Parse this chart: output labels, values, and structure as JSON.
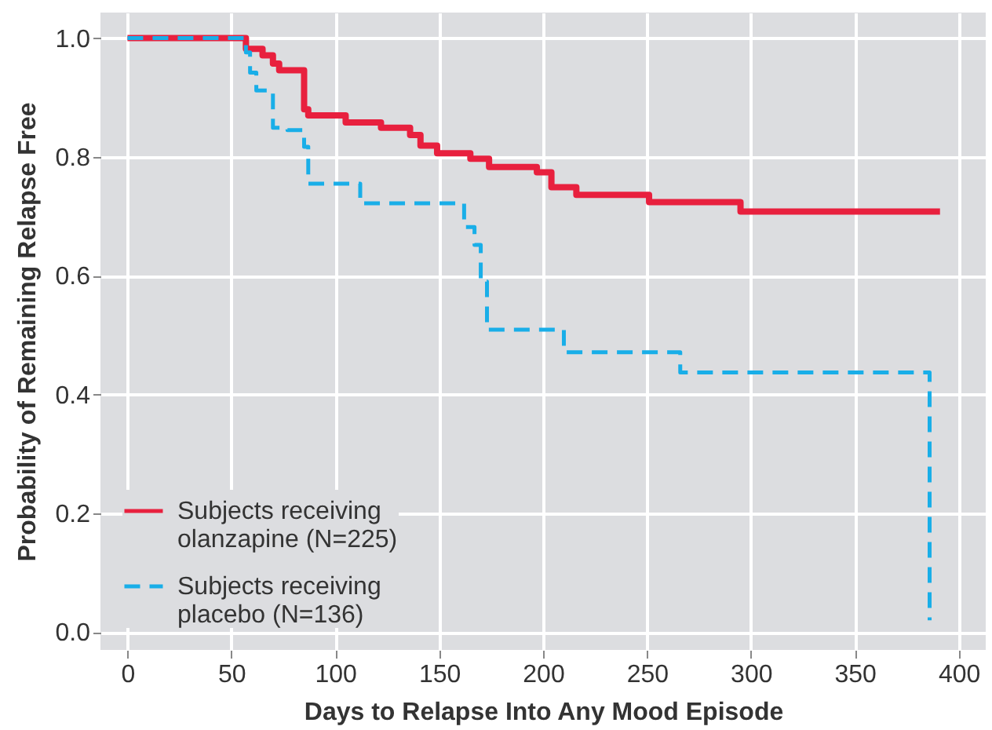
{
  "chart_data": {
    "type": "step",
    "xlabel": "Days to Relapse Into Any Mood Episode",
    "ylabel": "Probability of Remaining Relapse Free",
    "xlim": [
      -13,
      413
    ],
    "ylim": [
      -0.03,
      1.043
    ],
    "xticks": [
      0,
      50,
      100,
      150,
      200,
      250,
      300,
      350,
      400
    ],
    "yticks": [
      {
        "value": 0,
        "label": "0.0"
      },
      {
        "value": 0.2,
        "label": "0.2"
      },
      {
        "value": 0.4,
        "label": "0.4"
      },
      {
        "value": 0.6,
        "label": "0.6"
      },
      {
        "value": 0.8,
        "label": "0.8"
      },
      {
        "value": 1,
        "label": "1.0"
      }
    ],
    "grid": true,
    "legend": "bottom left",
    "marker": "none",
    "series": [
      {
        "name": "Subjects receiving\nolanzapine (N=225)",
        "color": "#e8203e",
        "line_style": "solid",
        "x": [
          0,
          57,
          65,
          70,
          73,
          85,
          87,
          105,
          122,
          136,
          141,
          149,
          165,
          174,
          197,
          204,
          216,
          251,
          295,
          391
        ],
        "values": [
          1.0,
          0.982,
          0.971,
          0.957,
          0.946,
          0.88,
          0.87,
          0.858,
          0.849,
          0.837,
          0.819,
          0.806,
          0.797,
          0.783,
          0.774,
          0.749,
          0.736,
          0.724,
          0.708,
          0.708
        ]
      },
      {
        "name": "Subjects receiving\nplacebo (N=136)",
        "color": "#19aee8",
        "line_style": "dashed",
        "x": [
          0,
          57,
          59,
          62,
          70,
          77,
          85,
          87,
          112,
          162,
          167,
          170,
          173,
          210,
          266,
          386,
          386
        ],
        "values": [
          1.0,
          0.976,
          0.942,
          0.912,
          0.849,
          0.845,
          0.817,
          0.755,
          0.722,
          0.682,
          0.652,
          0.59,
          0.509,
          0.471,
          0.437,
          0.437,
          0.02
        ]
      }
    ]
  }
}
